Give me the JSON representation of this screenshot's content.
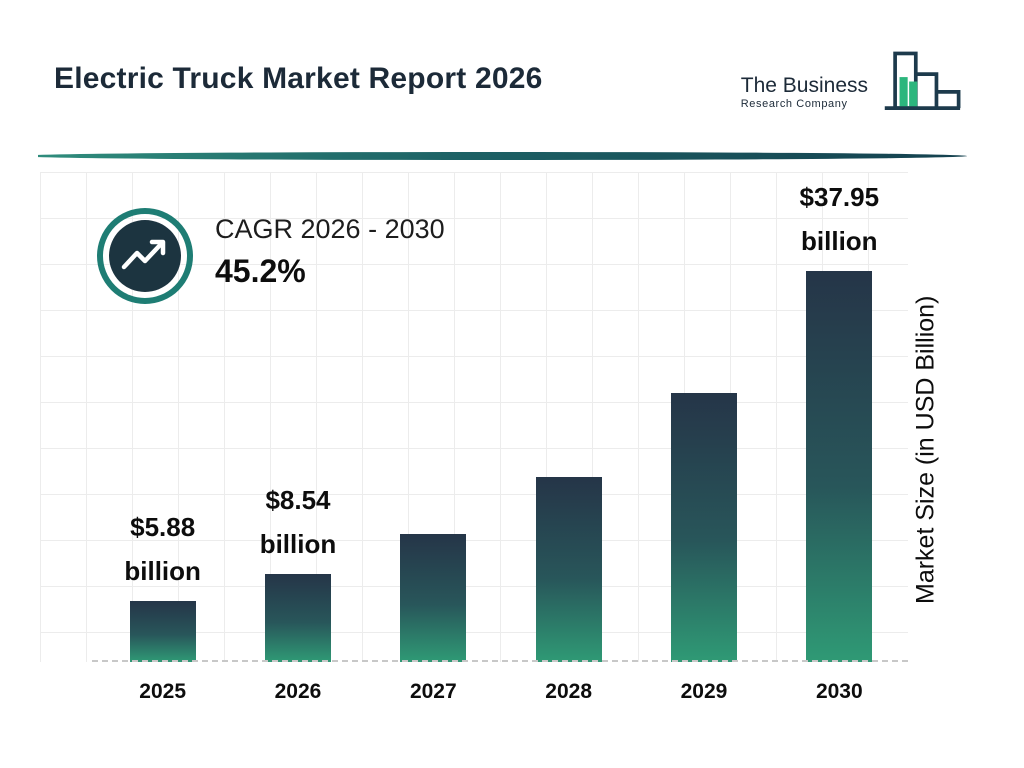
{
  "page": {
    "title": "Electric Truck Market Report 2026"
  },
  "logo": {
    "line1": "The Business",
    "line2": "Research Company"
  },
  "cagr": {
    "label": "CAGR 2026 - 2030",
    "value": "45.2%"
  },
  "chart_data": {
    "type": "bar",
    "title": "Electric Truck Market Report 2026",
    "categories": [
      "2025",
      "2026",
      "2027",
      "2028",
      "2029",
      "2030"
    ],
    "values": [
      5.88,
      8.54,
      12.4,
      18.0,
      26.1,
      37.95
    ],
    "value_labels": [
      [
        "$5.88",
        "billion"
      ],
      [
        "$8.54",
        "billion"
      ],
      null,
      null,
      null,
      [
        "$37.95",
        "billion"
      ]
    ],
    "ylabel": "Market Size (in USD Billion)",
    "ylim": [
      0,
      40
    ],
    "grid": true,
    "legend": "none",
    "colors": {
      "bar_top": "#253548",
      "bar_bottom": "#2f9a75",
      "accent_teal": "#1e7d74",
      "dark_navy": "#1c3440",
      "logo_green": "#2cb67d"
    }
  }
}
